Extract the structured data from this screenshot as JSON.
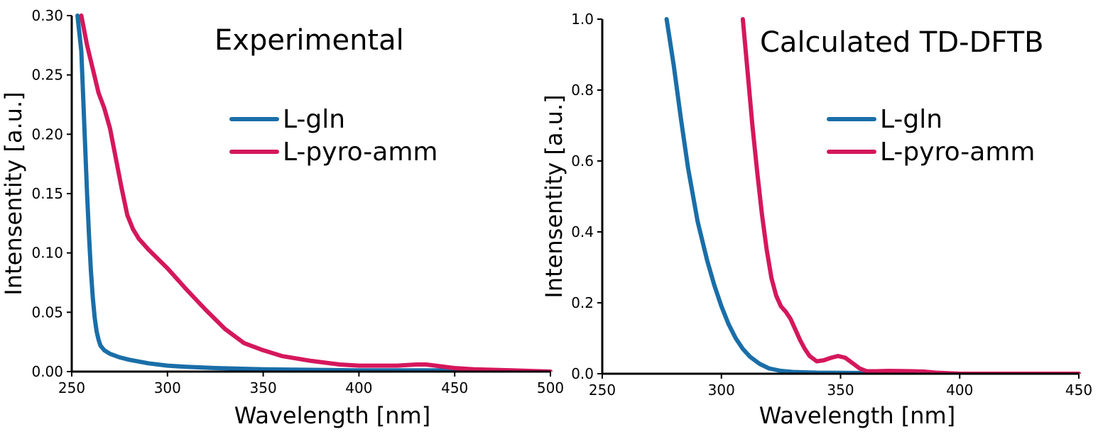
{
  "chart_data": [
    {
      "type": "line",
      "title": "Experimental",
      "xlabel": "Wavelength [nm]",
      "ylabel": "Intensentity [a.u.]",
      "xlim": [
        250,
        500
      ],
      "ylim": [
        0,
        0.3
      ],
      "xticks": [
        "250",
        "300",
        "350",
        "400",
        "450",
        "500"
      ],
      "yticks": [
        "0.00",
        "0.05",
        "0.10",
        "0.15",
        "0.20",
        "0.25",
        "0.30"
      ],
      "legend_position": "upper-center",
      "series": [
        {
          "name": "L-gln",
          "color": "#1a6ea8",
          "x": [
            253,
            255,
            256,
            257,
            258,
            259,
            260,
            261,
            262,
            263,
            264,
            265,
            267,
            270,
            275,
            280,
            290,
            300,
            310,
            325,
            350,
            400,
            450,
            500
          ],
          "y": [
            0.3,
            0.27,
            0.23,
            0.19,
            0.15,
            0.115,
            0.085,
            0.062,
            0.045,
            0.034,
            0.027,
            0.022,
            0.018,
            0.015,
            0.012,
            0.01,
            0.007,
            0.005,
            0.004,
            0.003,
            0.002,
            0.001,
            0.001,
            0.0
          ]
        },
        {
          "name": "L-pyro-amm",
          "color": "#d5175c",
          "x": [
            255,
            258,
            261,
            264,
            267,
            270,
            273,
            276,
            279,
            282,
            285,
            290,
            295,
            300,
            310,
            320,
            330,
            340,
            350,
            360,
            375,
            390,
            400,
            410,
            420,
            430,
            435,
            440,
            450,
            460,
            480,
            500
          ],
          "y": [
            0.3,
            0.275,
            0.255,
            0.235,
            0.222,
            0.205,
            0.18,
            0.155,
            0.132,
            0.12,
            0.112,
            0.103,
            0.095,
            0.087,
            0.069,
            0.052,
            0.036,
            0.024,
            0.018,
            0.013,
            0.009,
            0.006,
            0.005,
            0.005,
            0.005,
            0.006,
            0.006,
            0.005,
            0.003,
            0.002,
            0.001,
            0.0
          ]
        }
      ]
    },
    {
      "type": "line",
      "title": "Calculated TD-DFTB",
      "xlabel": "Wavelength [nm]",
      "ylabel": "Intensentity [a.u.]",
      "xlim": [
        250,
        450
      ],
      "ylim": [
        0,
        1.0
      ],
      "xticks": [
        "250",
        "300",
        "350",
        "400",
        "450"
      ],
      "yticks": [
        "0.0",
        "0.2",
        "0.4",
        "0.6",
        "0.8",
        "1.0"
      ],
      "legend_position": "upper-right",
      "series": [
        {
          "name": "L-gln",
          "color": "#1a6ea8",
          "x": [
            277,
            280,
            283,
            286,
            290,
            294,
            297,
            300,
            303,
            306,
            309,
            312,
            316,
            320,
            325,
            330,
            340,
            360,
            400,
            450
          ],
          "y": [
            1.0,
            0.87,
            0.72,
            0.58,
            0.43,
            0.32,
            0.25,
            0.19,
            0.14,
            0.1,
            0.07,
            0.048,
            0.028,
            0.015,
            0.008,
            0.005,
            0.003,
            0.002,
            0.0,
            0.0
          ]
        },
        {
          "name": "L-pyro-amm",
          "color": "#d5175c",
          "x": [
            309,
            311,
            313,
            315,
            317,
            319,
            321,
            323,
            325,
            327,
            329,
            331,
            333,
            335,
            337,
            340,
            343,
            346,
            349,
            352,
            355,
            358,
            361,
            365,
            370,
            380,
            385,
            390,
            400,
            450
          ],
          "y": [
            1.0,
            0.85,
            0.7,
            0.57,
            0.45,
            0.35,
            0.27,
            0.22,
            0.19,
            0.175,
            0.155,
            0.125,
            0.095,
            0.07,
            0.05,
            0.035,
            0.038,
            0.045,
            0.05,
            0.045,
            0.03,
            0.015,
            0.007,
            0.007,
            0.008,
            0.007,
            0.006,
            0.003,
            0.0,
            0.0
          ]
        }
      ]
    }
  ]
}
